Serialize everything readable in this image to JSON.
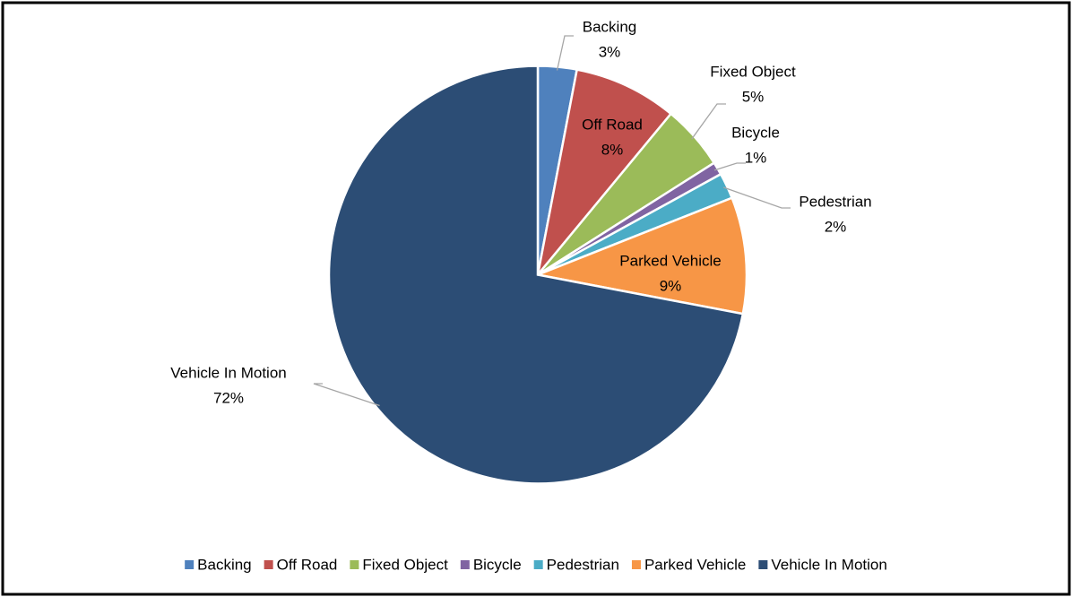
{
  "chart_data": {
    "type": "pie",
    "categories": [
      "Backing",
      "Off Road",
      "Fixed Object",
      "Bicycle",
      "Pedestrian",
      "Parked Vehicle",
      "Vehicle In Motion"
    ],
    "values": [
      3,
      8,
      5,
      1,
      2,
      9,
      72
    ],
    "value_labels": [
      "3%",
      "8%",
      "5%",
      "1%",
      "2%",
      "9%",
      "72%"
    ],
    "colors": [
      "#4f81bd",
      "#c0504d",
      "#9bbb59",
      "#8064a2",
      "#4bacc6",
      "#f79646",
      "#2c4d75"
    ],
    "legend": "bottom"
  }
}
